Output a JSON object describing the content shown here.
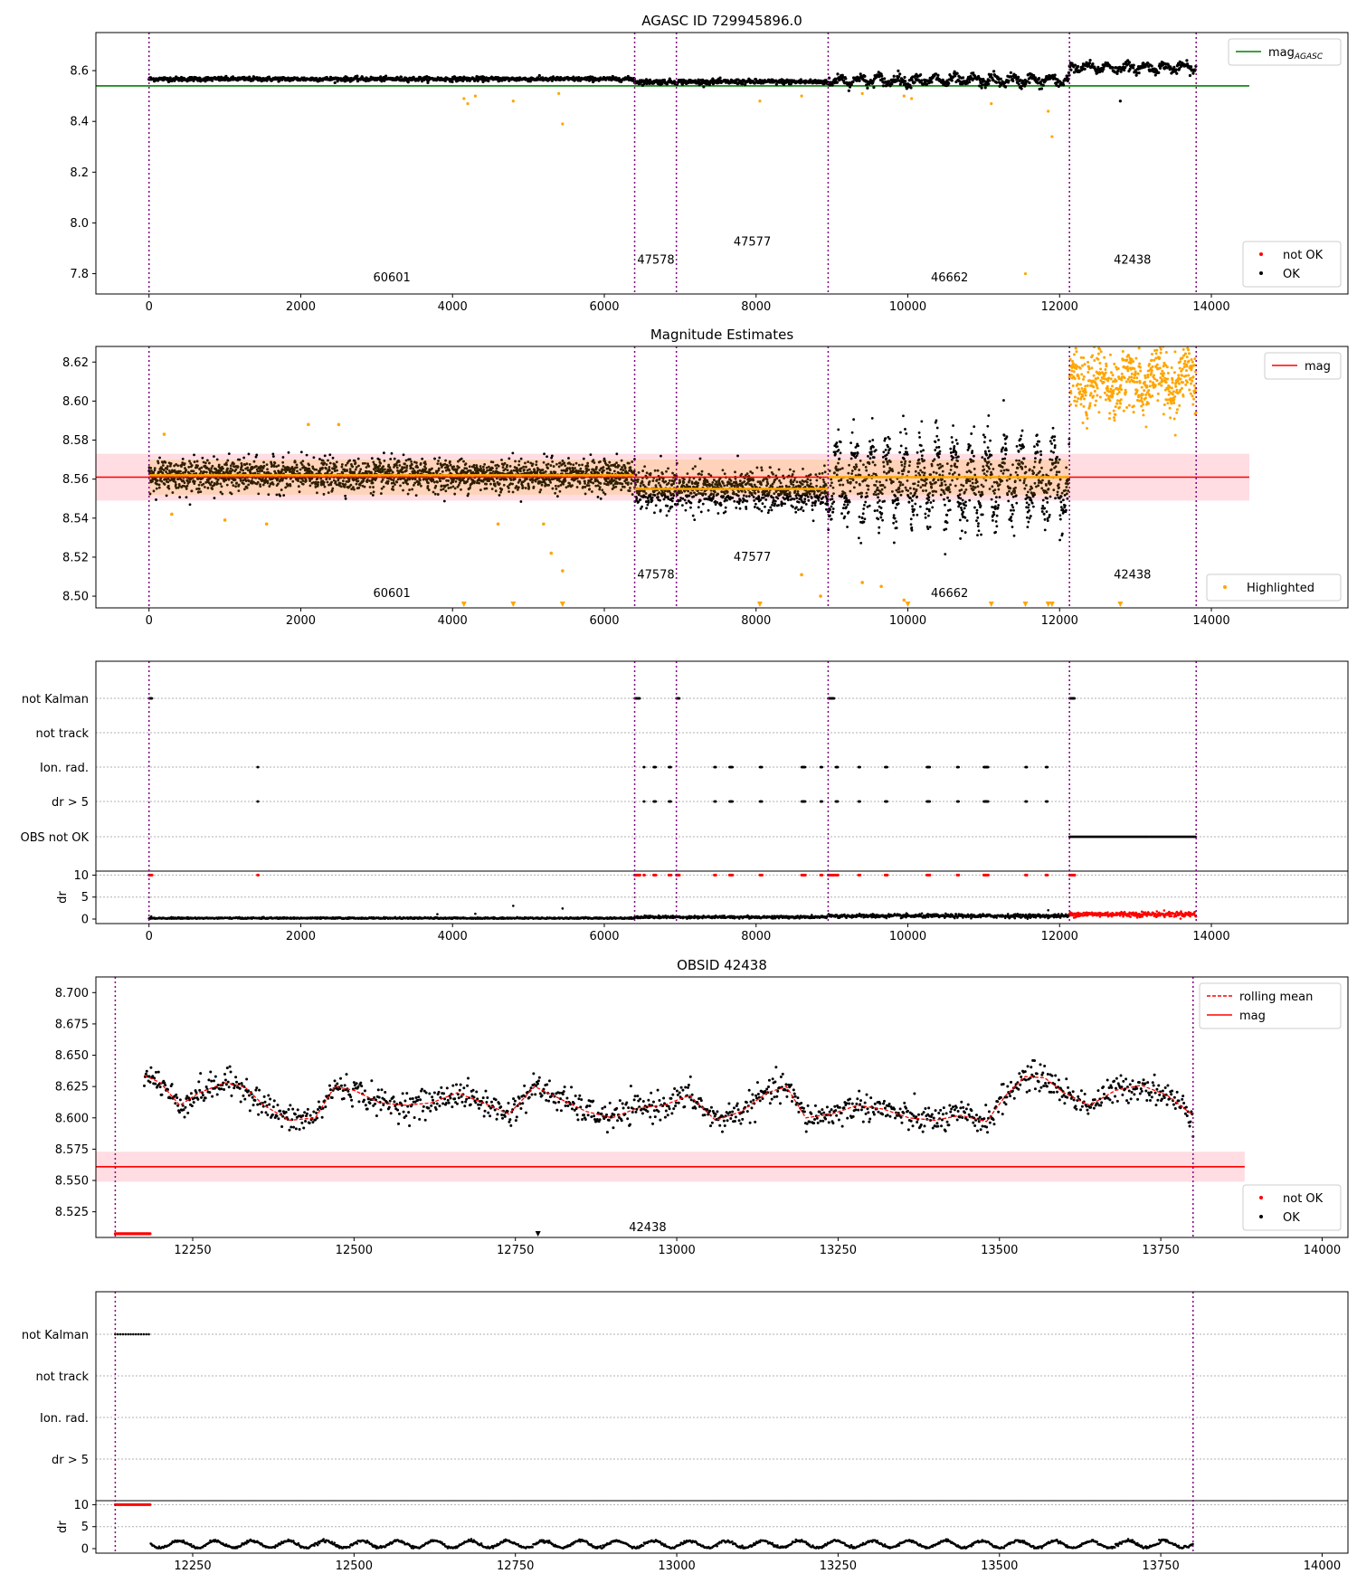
{
  "figure": {
    "background": "#ffffff"
  },
  "colors": {
    "ok": "#000000",
    "not_ok": "#ff0000",
    "agasc_line": "#008000",
    "mag_line": "#ff0000",
    "mag_band": "#ffdde2",
    "highlight": "#ffa500",
    "obs_boundary": "#800080",
    "grid": "#b0b0b0"
  },
  "chart_data": [
    {
      "id": "p1",
      "type": "scatter",
      "title": "AGASC ID 729945896.0",
      "xlim": [
        -700,
        15800
      ],
      "ylim": [
        7.72,
        8.75
      ],
      "xticks": [
        0,
        2000,
        4000,
        6000,
        8000,
        10000,
        12000,
        14000
      ],
      "xtick_labels": [
        "0",
        "2000",
        "4000",
        "6000",
        "8000",
        "10000",
        "12000",
        "14000"
      ],
      "yticks": [
        7.8,
        8.0,
        8.2,
        8.4,
        8.6
      ],
      "ytick_labels": [
        "7.8",
        "8.0",
        "8.2",
        "8.4",
        "8.6"
      ],
      "obs_boundaries": [
        0,
        6400,
        6950,
        8950,
        12130,
        13800
      ],
      "obs_labels": [
        {
          "text": "60601",
          "x": 3200,
          "y": 7.77
        },
        {
          "text": "47578",
          "x": 6680,
          "y": 7.84
        },
        {
          "text": "47577",
          "x": 7950,
          "y": 7.91
        },
        {
          "text": "46662",
          "x": 10550,
          "y": 7.77
        },
        {
          "text": "42438",
          "x": 12960,
          "y": 7.84
        }
      ],
      "horizontal_lines": [
        {
          "name": "mag_AGASC",
          "y": 8.54,
          "x": [
            -700,
            14500
          ],
          "color": "#008000"
        }
      ],
      "segments": [
        {
          "x": [
            0,
            6400
          ],
          "mean": 8.567,
          "spread": 0.012
        },
        {
          "x": [
            6400,
            8950
          ],
          "mean": 8.556,
          "spread": 0.014
        },
        {
          "x": [
            8950,
            12130
          ],
          "mean": 8.562,
          "spread": 0.028
        },
        {
          "x": [
            12130,
            13800
          ],
          "mean": 8.612,
          "spread": 0.024
        }
      ],
      "orange_points": [
        [
          4150,
          8.49
        ],
        [
          4200,
          8.47
        ],
        [
          4300,
          8.5
        ],
        [
          4800,
          8.48
        ],
        [
          5450,
          8.39
        ],
        [
          5400,
          8.51
        ],
        [
          8050,
          8.48
        ],
        [
          8600,
          8.5
        ],
        [
          9400,
          8.51
        ],
        [
          9950,
          8.5
        ],
        [
          10050,
          8.49
        ],
        [
          11100,
          8.47
        ],
        [
          11550,
          7.8
        ],
        [
          11850,
          8.44
        ],
        [
          11900,
          8.34
        ]
      ],
      "black_outliers": [
        [
          12800,
          8.48
        ]
      ],
      "legends": [
        {
          "position": "top-right",
          "items": [
            {
              "label": "mag",
              "sub": "AGASC",
              "kind": "line",
              "color": "#008000"
            }
          ]
        },
        {
          "position": "bottom-right",
          "items": [
            {
              "label": "not OK",
              "kind": "dot",
              "color": "#ff0000"
            },
            {
              "label": "OK",
              "kind": "dot",
              "color": "#000000"
            }
          ]
        }
      ]
    },
    {
      "id": "p2",
      "type": "scatter",
      "title": "Magnitude Estimates",
      "xlim": [
        -700,
        15800
      ],
      "ylim": [
        8.494,
        8.628
      ],
      "xticks": [
        0,
        2000,
        4000,
        6000,
        8000,
        10000,
        12000,
        14000
      ],
      "xtick_labels": [
        "0",
        "2000",
        "4000",
        "6000",
        "8000",
        "10000",
        "12000",
        "14000"
      ],
      "yticks": [
        8.5,
        8.52,
        8.54,
        8.56,
        8.58,
        8.6,
        8.62
      ],
      "ytick_labels": [
        "8.50",
        "8.52",
        "8.54",
        "8.56",
        "8.58",
        "8.60",
        "8.62"
      ],
      "obs_boundaries": [
        0,
        6400,
        6950,
        8950,
        12130,
        13800
      ],
      "obs_labels": [
        {
          "text": "60601",
          "x": 3200,
          "y": 8.4995
        },
        {
          "text": "47578",
          "x": 6680,
          "y": 8.509
        },
        {
          "text": "47577",
          "x": 7950,
          "y": 8.518
        },
        {
          "text": "46662",
          "x": 10550,
          "y": 8.4995
        },
        {
          "text": "42438",
          "x": 12960,
          "y": 8.509
        }
      ],
      "mag": {
        "y": 8.561,
        "band": [
          8.549,
          8.573
        ],
        "x": [
          -700,
          14500
        ]
      },
      "segment_means": [
        {
          "x": [
            0,
            6400
          ],
          "y": 8.562
        },
        {
          "x": [
            6400,
            8950
          ],
          "y": 8.555
        },
        {
          "x": [
            8950,
            12130
          ],
          "y": 8.561
        }
      ],
      "segments": [
        {
          "x": [
            0,
            6400
          ],
          "mean": 8.562,
          "spread": 0.008
        },
        {
          "x": [
            6400,
            8950
          ],
          "mean": 8.554,
          "spread": 0.01
        },
        {
          "x": [
            8950,
            12130
          ],
          "mean": 8.559,
          "spread": 0.017
        }
      ],
      "highlight_segment": {
        "x": [
          12130,
          13800
        ],
        "mean": 8.61,
        "spread": 0.014
      },
      "orange_points": [
        [
          200,
          8.583
        ],
        [
          300,
          8.542
        ],
        [
          1000,
          8.539
        ],
        [
          1550,
          8.537
        ],
        [
          2100,
          8.588
        ],
        [
          2500,
          8.588
        ],
        [
          4600,
          8.537
        ],
        [
          5200,
          8.537
        ],
        [
          5300,
          8.522
        ],
        [
          5450,
          8.513
        ],
        [
          8600,
          8.511
        ],
        [
          8850,
          8.5
        ],
        [
          9400,
          8.507
        ],
        [
          9650,
          8.505
        ],
        [
          9950,
          8.498
        ]
      ],
      "down_markers": [
        4150,
        4800,
        5450,
        8050,
        10000,
        11100,
        11550,
        11850,
        11900,
        12800
      ],
      "legends": [
        {
          "position": "top-right",
          "items": [
            {
              "label": "mag",
              "kind": "line",
              "color": "#ff0000"
            }
          ]
        },
        {
          "position": "bottom-right",
          "items": [
            {
              "label": "Highlighted",
              "kind": "dot",
              "color": "#ffa500"
            }
          ]
        }
      ]
    },
    {
      "id": "p3",
      "type": "scatter",
      "title": "",
      "xlim": [
        -700,
        15800
      ],
      "categories": [
        "not Kalman",
        "not track",
        "Ion. rad.",
        "dr > 5",
        "OBS not OK"
      ],
      "obs_boundaries": [
        0,
        6400,
        6950,
        8950,
        12130,
        13800
      ],
      "flags": {
        "not Kalman": [
          [
            0,
            40
          ],
          [
            6400,
            6470
          ],
          [
            6950,
            6990
          ],
          [
            8950,
            9030
          ],
          [
            12130,
            12200
          ]
        ],
        "not track": [],
        "Ion. rad.": [
          [
            1430,
            1440
          ],
          [
            6520,
            6530
          ],
          [
            6650,
            6680
          ],
          [
            6850,
            6880
          ],
          [
            7450,
            7470
          ],
          [
            7650,
            7690
          ],
          [
            8050,
            8080
          ],
          [
            8600,
            8650
          ],
          [
            8850,
            8870
          ],
          [
            9050,
            9080
          ],
          [
            9350,
            9370
          ],
          [
            9700,
            9730
          ],
          [
            10250,
            10290
          ],
          [
            10650,
            10670
          ],
          [
            11000,
            11060
          ],
          [
            11550,
            11570
          ],
          [
            11820,
            11840
          ]
        ],
        "dr > 5": [
          [
            1430,
            1440
          ],
          [
            6520,
            6530
          ],
          [
            6650,
            6680
          ],
          [
            6850,
            6880
          ],
          [
            7450,
            7470
          ],
          [
            7650,
            7690
          ],
          [
            8050,
            8080
          ],
          [
            8600,
            8650
          ],
          [
            8850,
            8870
          ],
          [
            9050,
            9080
          ],
          [
            9350,
            9370
          ],
          [
            9700,
            9730
          ],
          [
            10250,
            10290
          ],
          [
            10650,
            10670
          ],
          [
            11000,
            11060
          ],
          [
            11550,
            11570
          ],
          [
            11820,
            11840
          ]
        ],
        "OBS not OK": [
          [
            12130,
            13800
          ]
        ]
      },
      "dr": {
        "ylabel": "dr",
        "yticks": [
          0,
          5,
          10
        ],
        "ytick_labels": [
          "0",
          "5",
          "10"
        ],
        "segments": [
          {
            "x": [
              0,
              6400
            ],
            "mean": 0.2,
            "spread": 0.15,
            "color": "#000000"
          },
          {
            "x": [
              6400,
              8950
            ],
            "mean": 0.45,
            "spread": 0.25,
            "color": "#000000"
          },
          {
            "x": [
              8950,
              12130
            ],
            "mean": 0.7,
            "spread": 0.35,
            "color": "#000000"
          },
          {
            "x": [
              12130,
              13800
            ],
            "mean": 1.1,
            "spread": 0.5,
            "color": "#ff0000"
          }
        ],
        "outliers": [
          [
            4800,
            3.0
          ],
          [
            5450,
            2.4
          ],
          [
            11850,
            2.0
          ],
          [
            4300,
            1.2
          ],
          [
            3800,
            1.1
          ]
        ]
      }
    },
    {
      "id": "p4",
      "type": "line",
      "title": "OBSID 42438",
      "xlim": [
        12100,
        14040
      ],
      "ylim": [
        8.5045,
        8.7125
      ],
      "xticks": [
        12250,
        12500,
        12750,
        13000,
        13250,
        13500,
        13750,
        14000
      ],
      "xtick_labels": [
        "12250",
        "12500",
        "12750",
        "13000",
        "13250",
        "13500",
        "13750",
        "14000"
      ],
      "yticks": [
        8.525,
        8.55,
        8.575,
        8.6,
        8.625,
        8.65,
        8.675,
        8.7
      ],
      "ytick_labels": [
        "8.525",
        "8.550",
        "8.575",
        "8.600",
        "8.625",
        "8.650",
        "8.675",
        "8.700"
      ],
      "obs_boundaries": [
        12130,
        13800
      ],
      "obs_labels": [
        {
          "text": "42438",
          "x": 12955,
          "y": 8.5095
        }
      ],
      "mag": {
        "y": 8.561,
        "band": [
          8.549,
          8.573
        ],
        "x": [
          12100,
          13880
        ]
      },
      "rolling_mean": {
        "x": [
          12175,
          12200,
          12230,
          12260,
          12300,
          12330,
          12360,
          12400,
          12440,
          12470,
          12500,
          12540,
          12580,
          12620,
          12660,
          12700,
          12740,
          12780,
          12820,
          12860,
          12900,
          12940,
          12980,
          13020,
          13060,
          13100,
          13140,
          13170,
          13200,
          13240,
          13280,
          13320,
          13360,
          13400,
          13440,
          13480,
          13510,
          13540,
          13570,
          13600,
          13640,
          13680,
          13720,
          13760,
          13800
        ],
        "y": [
          8.634,
          8.628,
          8.61,
          8.62,
          8.628,
          8.625,
          8.61,
          8.598,
          8.6,
          8.625,
          8.622,
          8.612,
          8.61,
          8.612,
          8.62,
          8.612,
          8.603,
          8.625,
          8.615,
          8.605,
          8.6,
          8.608,
          8.61,
          8.618,
          8.598,
          8.605,
          8.62,
          8.625,
          8.6,
          8.603,
          8.61,
          8.607,
          8.6,
          8.598,
          8.602,
          8.597,
          8.618,
          8.633,
          8.632,
          8.62,
          8.61,
          8.622,
          8.626,
          8.618,
          8.602
        ]
      },
      "not_ok_points": {
        "x": [
          12130,
          12185
        ],
        "y": 8.5075
      },
      "down_markers": [
        12785
      ],
      "legends": [
        {
          "position": "top-right",
          "items": [
            {
              "label": "rolling mean",
              "kind": "dashed",
              "color": "#ff0000"
            },
            {
              "label": "mag",
              "kind": "line",
              "color": "#ff0000"
            }
          ]
        },
        {
          "position": "bottom-right",
          "items": [
            {
              "label": "not OK",
              "kind": "dot",
              "color": "#ff0000"
            },
            {
              "label": "OK",
              "kind": "dot",
              "color": "#000000"
            }
          ]
        }
      ]
    },
    {
      "id": "p5",
      "type": "scatter",
      "title": "",
      "xlim": [
        12100,
        14040
      ],
      "xticks": [
        12250,
        12500,
        12750,
        13000,
        13250,
        13500,
        13750,
        14000
      ],
      "xtick_labels": [
        "12250",
        "12500",
        "12750",
        "13000",
        "13250",
        "13500",
        "13750",
        "14000"
      ],
      "categories": [
        "not Kalman",
        "not track",
        "Ion. rad.",
        "dr > 5"
      ],
      "obs_boundaries": [
        12130,
        13800
      ],
      "flags": {
        "not Kalman": [
          [
            12130,
            12185
          ]
        ],
        "not track": [],
        "Ion. rad.": [],
        "dr > 5": []
      },
      "dr": {
        "ylabel": "dr",
        "yticks": [
          0,
          5,
          10
        ],
        "ytick_labels": [
          "0",
          "5",
          "10"
        ],
        "not_ok_range": [
          12130,
          12185
        ],
        "ok_range": [
          12185,
          13800
        ]
      }
    }
  ]
}
